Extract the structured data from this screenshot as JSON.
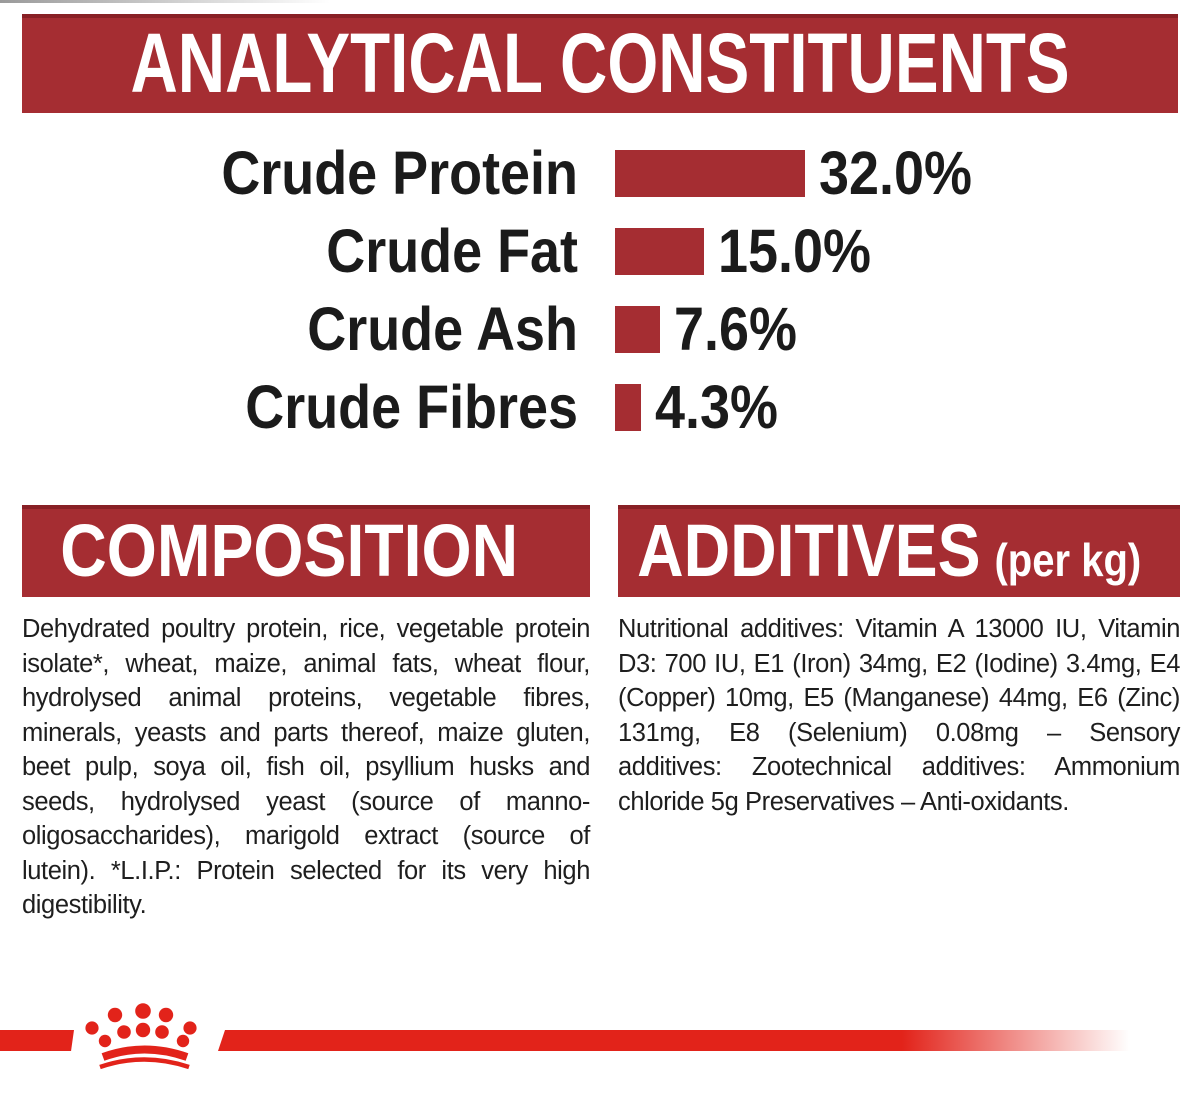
{
  "colors": {
    "background": "#FFFFFF",
    "banner_red": "#A52D32",
    "bar_red": "#A52D32",
    "logo_red": "#E2231A",
    "heading_text": "#FFFFFF",
    "body_text": "#1E1E1E"
  },
  "analytical": {
    "title": "ANALYTICAL CONSTITUENTS"
  },
  "chart_data": {
    "type": "bar",
    "orientation": "horizontal",
    "title": "ANALYTICAL CONSTITUENTS",
    "categories": [
      "Crude Protein",
      "Crude Fat",
      "Crude Ash",
      "Crude Fibres"
    ],
    "values": [
      32.0,
      15.0,
      7.6,
      4.3
    ],
    "value_labels": [
      "32.0%",
      "15.0%",
      "7.6%",
      "4.3%"
    ],
    "unit": "%",
    "xlim": [
      0,
      32
    ],
    "grid": false,
    "legend": false,
    "bar_color": "#A52D32"
  },
  "composition": {
    "title": "COMPOSITION",
    "body": "Dehydrated poultry protein, rice, vegetable protein isolate*, wheat, maize, animal fats, wheat flour, hydrolysed animal proteins, vegetable fibres, minerals, yeasts and parts thereof, maize gluten, beet pulp, soya oil, fish oil, psyllium husks and seeds, hydrolysed yeast (source of manno-oligosaccharides), marigold extract (source of lutein). *L.I.P.: Protein selected for its very high digestibility."
  },
  "additives": {
    "title": "ADDITIVES",
    "suffix": "(per kg)",
    "body": "Nutritional additives: Vitamin A 13000 IU, Vitamin D3: 700 IU, E1 (Iron) 34mg, E2 (Iodine) 3.4mg, E4 (Copper) 10mg, E5 (Manganese) 44mg, E6 (Zinc) 131mg, E8 (Selenium) 0.08mg – Sensory additives: Zootechnical additives: Ammonium chloride 5g Preservatives – Anti-oxidants."
  },
  "footer": {
    "logo": "royal-canin-crown"
  }
}
